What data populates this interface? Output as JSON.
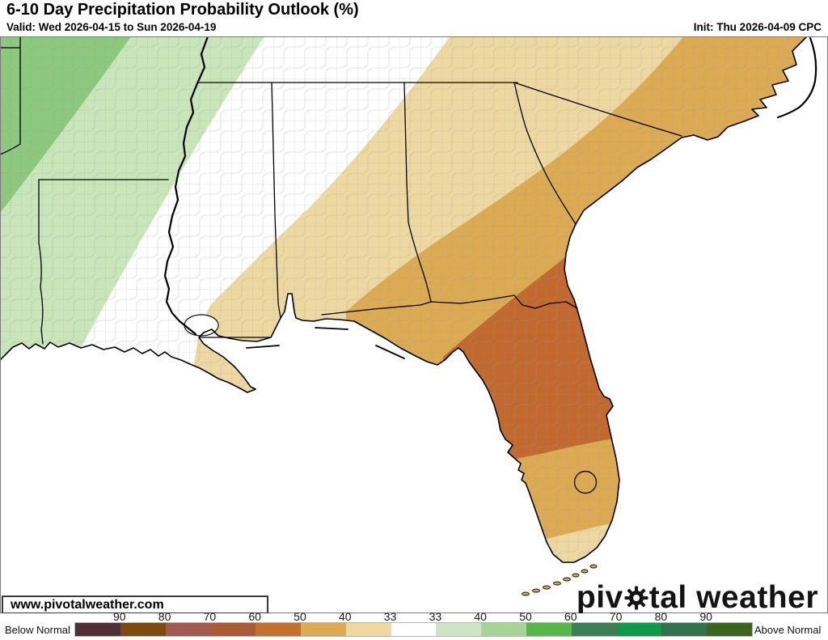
{
  "header": {
    "title": "6-10 Day Precipitation Probability Outlook (%)",
    "valid": "Valid: Wed 2026-04-15 to Sun 2026-04-19",
    "init": "Init: Thu 2026-04-09 CPC"
  },
  "map": {
    "watermark": "www.pivotalweather.com",
    "logo": {
      "part1": "piv",
      "part2": "tal weather",
      "gear_icon": "gear"
    },
    "ocean_color": "#ffffff",
    "bands": [
      {
        "name": "above-normal-40-50",
        "color": "#8cc97e"
      },
      {
        "name": "above-normal-33-40",
        "color": "#c9e6bb"
      },
      {
        "name": "near-normal",
        "color": "#ffffff"
      },
      {
        "name": "below-normal-33-40",
        "color": "#eed8a2"
      },
      {
        "name": "below-normal-40-50",
        "color": "#dcaa52"
      },
      {
        "name": "below-normal-50-60",
        "color": "#c1692f"
      },
      {
        "name": "below-normal-tip-33-40",
        "color": "#eed8a2"
      }
    ]
  },
  "colorbar": {
    "left_label": "Below Normal",
    "right_label": "Above Normal",
    "below_ticks": [
      "90",
      "80",
      "70",
      "60",
      "50",
      "40",
      "33"
    ],
    "above_ticks": [
      "33",
      "40",
      "50",
      "60",
      "70",
      "80",
      "90"
    ],
    "below_colors": [
      "#4f3038",
      "#7d4a10",
      "#a05a50",
      "#aa5a35",
      "#c2712e",
      "#dcaa52",
      "#eed8a0"
    ],
    "neutral_color": "#ffffff",
    "above_colors": [
      "#cde5c2",
      "#a5d495",
      "#56b649",
      "#3d7e55",
      "#109a47",
      "#33704c",
      "#3a661f"
    ]
  }
}
